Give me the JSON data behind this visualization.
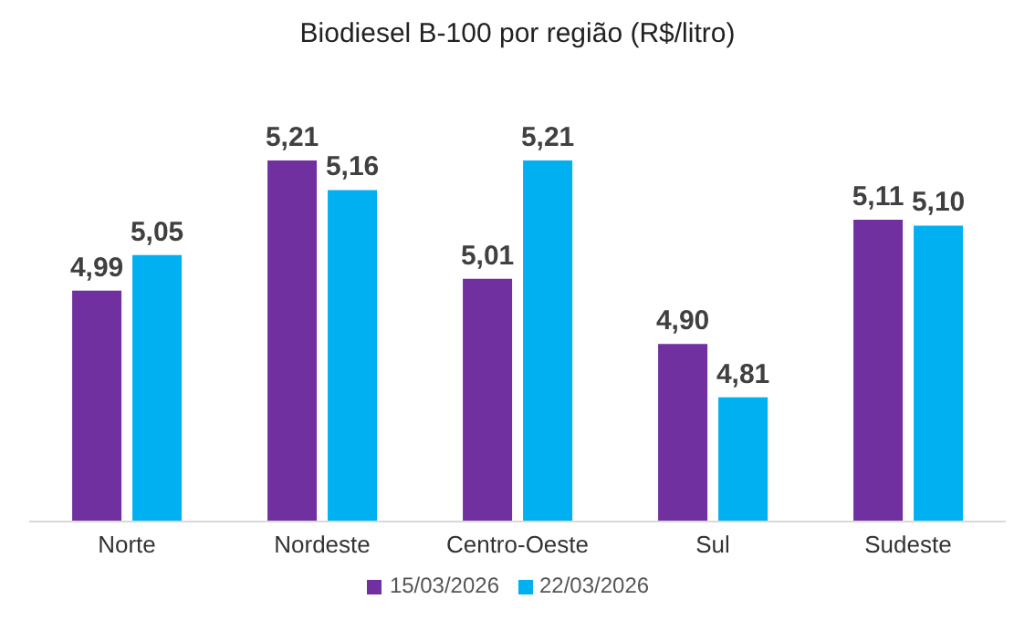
{
  "chart_data": {
    "type": "bar",
    "title": "Biodiesel B-100 por região (R$/litro)",
    "categories": [
      "Norte",
      "Nordeste",
      "Centro-Oeste",
      "Sul",
      "Sudeste"
    ],
    "series": [
      {
        "name": "15/03/2026",
        "color": "#7030a0",
        "values": [
          4.99,
          5.21,
          5.01,
          4.9,
          5.11
        ],
        "value_labels": [
          "4,99",
          "5,21",
          "5,01",
          "4,90",
          "5,11"
        ]
      },
      {
        "name": "22/03/2026",
        "color": "#00b0f0",
        "values": [
          5.05,
          5.16,
          5.21,
          4.81,
          5.1
        ],
        "value_labels": [
          "5,05",
          "5,16",
          "5,21",
          "4,81",
          "5,10"
        ]
      }
    ],
    "ylim": [
      4.6,
      5.21
    ],
    "legend": "bottom",
    "tick_labels": "x"
  }
}
